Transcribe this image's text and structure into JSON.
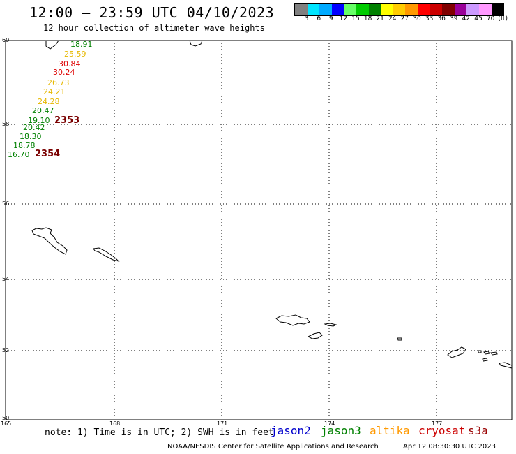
{
  "header": {
    "title": "12:00 – 23:59 UTC 04/10/2023",
    "subtitle": "12 hour collection of altimeter wave heights"
  },
  "legend": {
    "colors": [
      "#808080",
      "#00e5ff",
      "#00aaff",
      "#0000ff",
      "#66ff66",
      "#00cc00",
      "#008000",
      "#ffff00",
      "#ffcc00",
      "#ff9900",
      "#ff0000",
      "#cc0000",
      "#800000",
      "#990099",
      "#cc99ff",
      "#ff99ff",
      "#000000"
    ],
    "labels": [
      "3",
      "6",
      "9",
      "12",
      "15",
      "18",
      "21",
      "24",
      "27",
      "30",
      "33",
      "36",
      "39",
      "42",
      "45",
      "70",
      "(ft)"
    ]
  },
  "axes": {
    "lat_labels": [
      "60",
      "58",
      "56",
      "54",
      "52",
      "50"
    ],
    "lon_labels": [
      "165",
      "168",
      "171",
      "174",
      "177"
    ]
  },
  "observations": [
    {
      "value": "18.91",
      "color": "#008000"
    },
    {
      "value": "25.59",
      "color": "#e6b800"
    },
    {
      "value": "30.84",
      "color": "#dd0000"
    },
    {
      "value": "30.24",
      "color": "#dd0000"
    },
    {
      "value": "26.73",
      "color": "#e6b800"
    },
    {
      "value": "24.21",
      "color": "#e6b800"
    },
    {
      "value": "24.28",
      "color": "#e6b800"
    },
    {
      "value": "20.47",
      "color": "#008000"
    },
    {
      "value": "19.10",
      "color": "#008000"
    },
    {
      "value": "20.42",
      "color": "#008000"
    },
    {
      "value": "18.30",
      "color": "#008000"
    },
    {
      "value": "18.78",
      "color": "#008000"
    },
    {
      "value": "16.70",
      "color": "#008000"
    }
  ],
  "time_labels": [
    "2353",
    "2354"
  ],
  "footer": {
    "note": "note: 1) Time is in UTC; 2) SWH is in feet",
    "satellites": [
      {
        "name": "jason2",
        "color": "#0000cc"
      },
      {
        "name": "jason3",
        "color": "#008000"
      },
      {
        "name": "altika",
        "color": "#ff9900"
      },
      {
        "name": "cryosat",
        "color": "#cc0000"
      },
      {
        "name": "s3a",
        "color": "#990000"
      }
    ],
    "credit": "NOAA/NESDIS Center for Satellite Applications and Research",
    "timestamp": "Apr 12 08:30:30 UTC 2023"
  }
}
